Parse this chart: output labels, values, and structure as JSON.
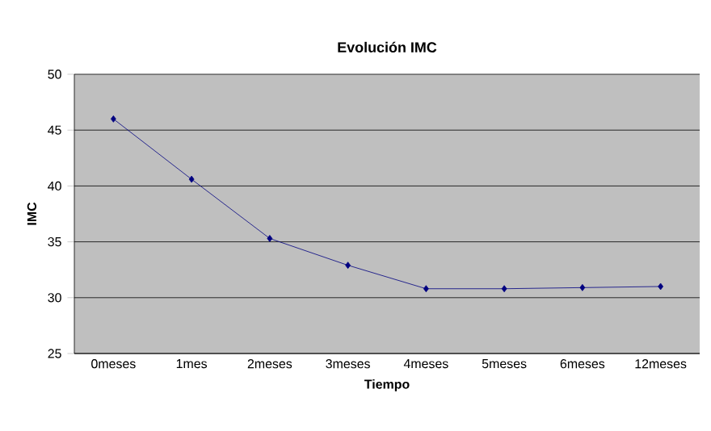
{
  "chart_data": {
    "type": "line",
    "title": "Evolución IMC",
    "xlabel": "Tiempo",
    "ylabel": "IMC",
    "categories": [
      "0meses",
      "1mes",
      "2meses",
      "3meses",
      "4meses",
      "5meses",
      "6meses",
      "12meses"
    ],
    "series": [
      {
        "color": "#000080",
        "values": [
          46,
          40.6,
          35.3,
          32.9,
          30.8,
          30.8,
          30.9,
          31
        ]
      }
    ],
    "ylim": [
      25,
      50
    ],
    "yticks": [
      25,
      30,
      35,
      40,
      45,
      50
    ],
    "grid": "y",
    "marker": "diamond",
    "line_style": "solid"
  }
}
